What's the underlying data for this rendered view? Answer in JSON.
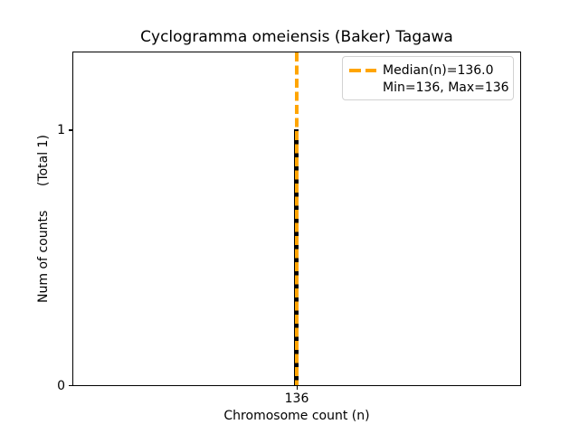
{
  "figure": {
    "title": "Cyclogramma omeiensis (Baker) Tagawa",
    "xlabel": "Chromosome count (n)",
    "ylabel": "Num of counts      (Total 1)",
    "xticks": [
      "136"
    ],
    "yticks": [
      "0",
      "1"
    ],
    "legend": {
      "median_label": "Median(n)=136.0",
      "minmax_label": "Min=136, Max=136"
    },
    "colors": {
      "median_line": "#FFA500",
      "bar": "#000000",
      "axes_frame": "#000000",
      "legend_border": "#D2D2D2",
      "text": "#000000",
      "background": "#FFFFFF"
    }
  },
  "chart_data": {
    "type": "bar",
    "title": "Cyclogramma omeiensis (Baker) Tagawa",
    "xlabel": "Chromosome count (n)",
    "ylabel": "Num of counts      (Total 1)",
    "categories": [
      136
    ],
    "values": [
      1
    ],
    "total_counts": 1,
    "x_tick_labels": [
      "136"
    ],
    "y_tick_labels": [
      "0",
      "1"
    ],
    "ylim": [
      0,
      1.3
    ],
    "grid": false,
    "bar_color": "#000000",
    "median": 136.0,
    "min": 136,
    "max": 136,
    "median_line": {
      "x": 136.0,
      "color": "#FFA500",
      "linestyle": "dashed",
      "orientation": "vertical"
    },
    "legend": {
      "position": "upper right",
      "entries": [
        {
          "handle": "orange-dashed-line",
          "label": "Median(n)=136.0"
        },
        {
          "handle": "none",
          "label": "Min=136, Max=136"
        }
      ]
    }
  }
}
